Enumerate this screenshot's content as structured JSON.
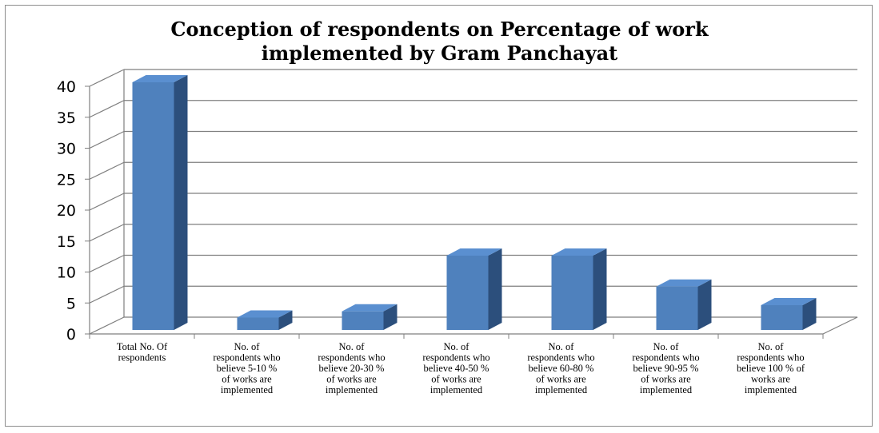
{
  "chart_data": {
    "type": "bar",
    "title_lines": [
      "Conception of respondents on Percentage of work",
      "implemented by Gram Panchayat"
    ],
    "categories": [
      [
        "Total No. Of",
        "respondents"
      ],
      [
        "No. of",
        "respondents who",
        "believe 5-10 %",
        "of works are",
        "implemented"
      ],
      [
        "No. of",
        "respondents who",
        "believe 20-30 %",
        "of works are",
        "implemented"
      ],
      [
        "No. of",
        "respondents who",
        "believe 40-50 %",
        "of works are",
        "implemented"
      ],
      [
        "No. of",
        "respondents who",
        "believe 60-80 %",
        "of works are",
        "implemented"
      ],
      [
        "No. of",
        "respondents who",
        "believe 90-95 %",
        "of works are",
        "implemented"
      ],
      [
        "No. of",
        "respondents who",
        "believe 100 % of",
        "works are",
        "implemented"
      ]
    ],
    "values": [
      40,
      2,
      3,
      12,
      12,
      7,
      4
    ],
    "ylim": [
      0,
      40
    ],
    "yticks": [
      0,
      5,
      10,
      15,
      20,
      25,
      30,
      35,
      40
    ],
    "grid": true,
    "style": "3d-column",
    "colors": {
      "front": "#4f81bd",
      "top": "#5a8fd0",
      "side": "#2c4f7c"
    }
  }
}
